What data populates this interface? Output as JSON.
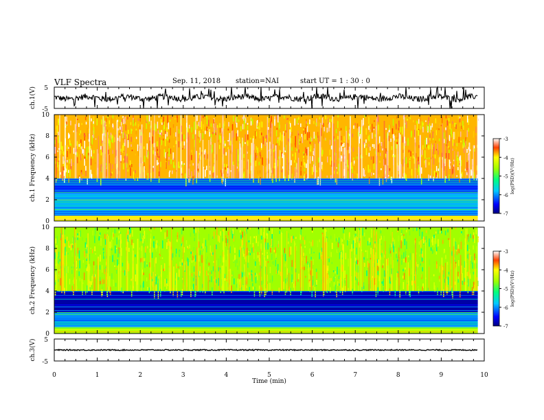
{
  "header": {
    "title": "VLF Spectra",
    "date": "Sep. 11, 2018",
    "station": "station=NAI",
    "start": "start  UT =   1 : 30 : 0"
  },
  "chart_data": [
    {
      "type": "line",
      "name": "ch.1(V) waveform",
      "ylabel": "ch.1(V)",
      "yticks": [
        "5",
        "-5"
      ],
      "ylim": [
        -5,
        5
      ],
      "xlim": [
        0,
        10
      ],
      "x_extent": [
        0,
        9.85
      ],
      "level": 0
    },
    {
      "type": "heatmap",
      "name": "ch.1 spectrogram",
      "ylabel": "ch.1  Frequency  (kHz)",
      "yticks": [
        "0",
        "2",
        "4",
        "6",
        "8",
        "10"
      ],
      "ylim": [
        0,
        10
      ],
      "xlim": [
        0,
        10
      ],
      "colorbar": {
        "label": "log(PSD)(V²/Hz)",
        "ticks": [
          "-3",
          "-4",
          "-5",
          "-6",
          "-7"
        ],
        "range": [
          -7,
          -3
        ]
      },
      "bands": [
        {
          "from": 4.0,
          "to": 10.0,
          "level": -3.8
        },
        {
          "from": 2.6,
          "to": 4.0,
          "level": -6.3
        },
        {
          "from": 0.5,
          "to": 2.6,
          "level": -5.9
        },
        {
          "from": 0.0,
          "to": 0.5,
          "level": -4.0
        }
      ]
    },
    {
      "type": "heatmap",
      "name": "ch.2 spectrogram",
      "ylabel": "ch.2  Frequency  (kHz)",
      "yticks": [
        "0",
        "2",
        "4",
        "6",
        "8",
        "10"
      ],
      "ylim": [
        0,
        10
      ],
      "xlim": [
        0,
        10
      ],
      "colorbar": {
        "label": "log(PSD)(V²/Hz)",
        "ticks": [
          "-3",
          "-4",
          "-5",
          "-6",
          "-7"
        ],
        "range": [
          -7,
          -3
        ]
      },
      "bands": [
        {
          "from": 4.0,
          "to": 10.0,
          "level": -4.6
        },
        {
          "from": 2.0,
          "to": 4.0,
          "level": -6.8
        },
        {
          "from": 0.6,
          "to": 2.0,
          "level": -6.0
        },
        {
          "from": 0.0,
          "to": 0.6,
          "level": -4.5
        }
      ]
    },
    {
      "type": "line",
      "name": "ch.3(V) waveform",
      "ylabel": "ch.3(V)",
      "yticks": [
        "5",
        "-5"
      ],
      "ylim": [
        -5,
        5
      ],
      "xlim": [
        0,
        10
      ],
      "x_extent": [
        0,
        9.85
      ],
      "level": 0,
      "xlabel": "Time  (min)",
      "xticks": [
        "0",
        "1",
        "2",
        "3",
        "4",
        "5",
        "6",
        "7",
        "8",
        "9",
        "10"
      ]
    }
  ]
}
